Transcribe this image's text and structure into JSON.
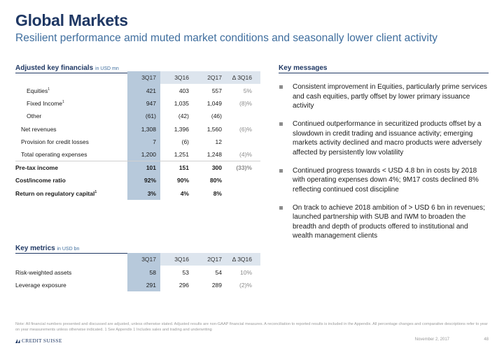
{
  "header": {
    "title": "Global Markets",
    "subtitle": "Resilient performance amid muted market conditions and seasonally lower client activity"
  },
  "financials": {
    "heading": "Adjusted key financials",
    "unit": "in USD mn",
    "columns": [
      "3Q17",
      "3Q16",
      "2Q17",
      "Δ 3Q16"
    ],
    "rows": [
      {
        "label": "Equities",
        "sup": "1",
        "values": [
          "421",
          "403",
          "557",
          "5%"
        ]
      },
      {
        "label": "Fixed Income",
        "sup": "1",
        "values": [
          "947",
          "1,035",
          "1,049",
          "(8)%"
        ]
      },
      {
        "label": "Other",
        "sup": "",
        "values": [
          "(61)",
          "(42)",
          "(46)",
          ""
        ]
      },
      {
        "label": "Net revenues",
        "sup": "",
        "values": [
          "1,308",
          "1,396",
          "1,560",
          "(6)%"
        ]
      },
      {
        "label": "Provision for credit losses",
        "sup": "",
        "values": [
          "7",
          "(6)",
          "12",
          ""
        ]
      },
      {
        "label": "Total operating expenses",
        "sup": "",
        "values": [
          "1,200",
          "1,251",
          "1,248",
          "(4)%"
        ]
      },
      {
        "label": "Pre-tax income",
        "sup": "",
        "values": [
          "101",
          "151",
          "300",
          "(33)%"
        ]
      },
      {
        "label": "Cost/income ratio",
        "sup": "",
        "values": [
          "92%",
          "90%",
          "80%",
          ""
        ]
      },
      {
        "label": "Return on regulatory capital",
        "sup": "1",
        "values": [
          "3%",
          "4%",
          "8%",
          ""
        ]
      }
    ]
  },
  "metrics": {
    "heading": "Key metrics",
    "unit": "in USD bn",
    "columns": [
      "3Q17",
      "3Q16",
      "2Q17",
      "Δ 3Q16"
    ],
    "rows": [
      {
        "label": "Risk-weighted assets",
        "values": [
          "58",
          "53",
          "54",
          "10%"
        ]
      },
      {
        "label": "Leverage exposure",
        "values": [
          "291",
          "296",
          "289",
          "(2)%"
        ]
      }
    ]
  },
  "key_messages": {
    "heading": "Key messages",
    "items": [
      "Consistent improvement in Equities, particularly prime services and cash equities, partly offset by lower primary issuance activity",
      "Continued outperformance in securitized products offset by a slowdown in credit trading and issuance activity; emerging markets activity declined and macro products were adversely affected by persistently low volatility",
      "Continued progress towards < USD 4.8 bn in costs by 2018 with operating expenses down 4%; 9M17 costs declined 8% reflecting continued cost discipline",
      "On track to achieve 2018 ambition of > USD 6 bn in revenues; launched partnership with SUB and IWM to broaden the breadth and depth of products offered to institutional and wealth management clients"
    ]
  },
  "footer": {
    "note": "Note: All financial numbers presented and discussed are adjusted, unless otherwise stated. Adjusted results are non-GAAP financial measures. A reconciliation to reported results is included in the Appendix. All percentage changes and comparative descriptions refer to year on year measurements unless otherwise indicated.   1 See Appendix   1 Includes sales and trading and underwriting",
    "logo": "CREDIT SUISSE",
    "date": "November 2, 2017",
    "page": "48"
  },
  "colors": {
    "title": "#1f3864",
    "subtitle": "#3f6e9e",
    "highlight_column": "#b7c9db",
    "header_row": "#dde5ee"
  }
}
